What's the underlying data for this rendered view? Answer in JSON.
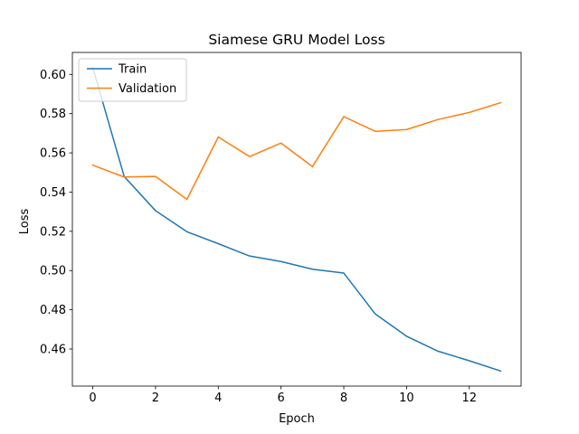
{
  "chart_data": {
    "type": "line",
    "title": "Siamese GRU Model Loss",
    "xlabel": "Epoch",
    "ylabel": "Loss",
    "x": [
      0,
      1,
      2,
      3,
      4,
      5,
      6,
      7,
      8,
      9,
      10,
      11,
      12,
      13
    ],
    "series": [
      {
        "name": "Train",
        "color": "#1f77b4",
        "values": [
          0.6035,
          0.548,
          0.5305,
          0.5198,
          0.5137,
          0.5074,
          0.5046,
          0.5007,
          0.4987,
          0.4779,
          0.4665,
          0.4589,
          0.454,
          0.4488
        ]
      },
      {
        "name": "Validation",
        "color": "#ff7f0e",
        "values": [
          0.5537,
          0.5477,
          0.548,
          0.5363,
          0.5681,
          0.5581,
          0.565,
          0.553,
          0.5785,
          0.571,
          0.5719,
          0.577,
          0.5806,
          0.5856
        ]
      }
    ],
    "xlim": [
      -0.65,
      13.65
    ],
    "ylim": [
      0.4411,
      0.6112
    ],
    "xticks": [
      0,
      2,
      4,
      6,
      8,
      10,
      12
    ],
    "xtick_labels": [
      "0",
      "2",
      "4",
      "6",
      "8",
      "10",
      "12"
    ],
    "yticks": [
      0.46,
      0.48,
      0.5,
      0.52,
      0.54,
      0.56,
      0.58,
      0.6
    ],
    "ytick_labels": [
      "0.46",
      "0.48",
      "0.50",
      "0.52",
      "0.54",
      "0.56",
      "0.58",
      "0.60"
    ],
    "grid": false,
    "legend_position": "upper left"
  }
}
